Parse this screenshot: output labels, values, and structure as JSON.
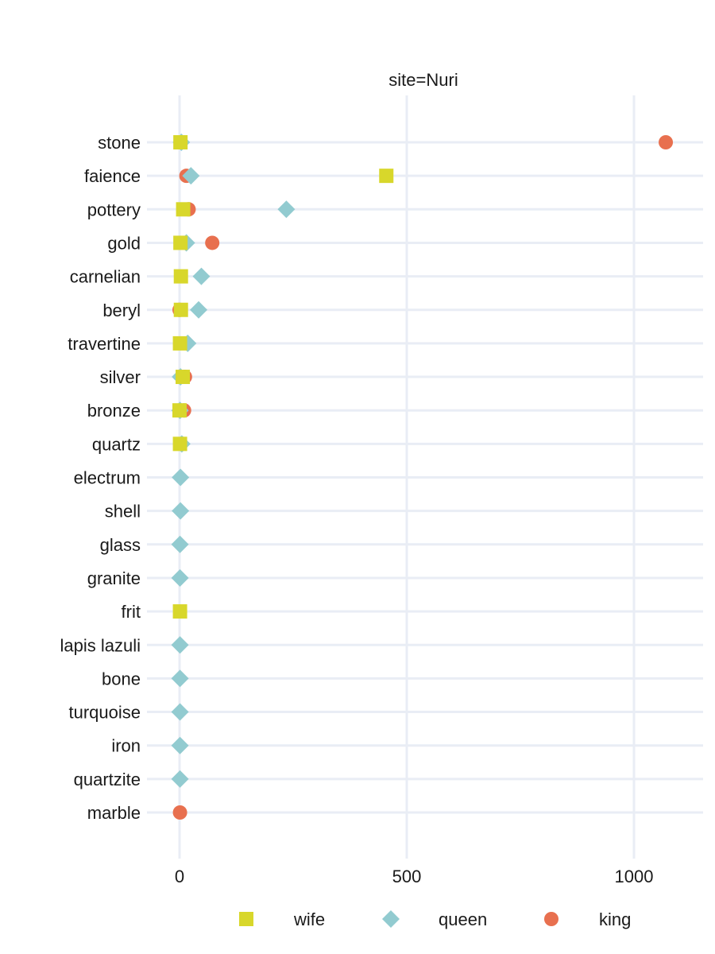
{
  "chart_data": {
    "type": "scatter",
    "title": "site=Nuri",
    "xlabel": "",
    "ylabel": "",
    "xlim": [
      -80,
      1150
    ],
    "xticks": [
      "0",
      "500",
      "1000"
    ],
    "xtick_values": [
      0,
      500,
      1000
    ],
    "grid": true,
    "legend_position": "bottom",
    "categories": [
      "stone",
      "faience",
      "pottery",
      "gold",
      "carnelian",
      "beryl",
      "travertine",
      "silver",
      "bronze",
      "quartz",
      "electrum",
      "shell",
      "glass",
      "granite",
      "frit",
      "lapis lazuli",
      "bone",
      "turquoise",
      "iron",
      "quartzite",
      "marble"
    ],
    "series": [
      {
        "name": "king",
        "marker": "circle",
        "color": "#e8704f",
        "values": [
          1070,
          15,
          20,
          72,
          null,
          0,
          null,
          12,
          10,
          null,
          null,
          null,
          null,
          null,
          null,
          null,
          null,
          null,
          null,
          null,
          1
        ]
      },
      {
        "name": "queen",
        "marker": "diamond",
        "color": "#92cbd0",
        "values": [
          4,
          25,
          235,
          15,
          48,
          42,
          18,
          2,
          1,
          5,
          2,
          2,
          1,
          1,
          null,
          1,
          1,
          1,
          1,
          1,
          null
        ]
      },
      {
        "name": "wife",
        "marker": "square",
        "color": "#d8d72b",
        "values": [
          2,
          455,
          8,
          2,
          3,
          3,
          1,
          7,
          0,
          1,
          null,
          null,
          null,
          null,
          1,
          null,
          null,
          null,
          null,
          null,
          null
        ]
      }
    ],
    "legend_order": [
      "wife",
      "queen",
      "king"
    ]
  }
}
